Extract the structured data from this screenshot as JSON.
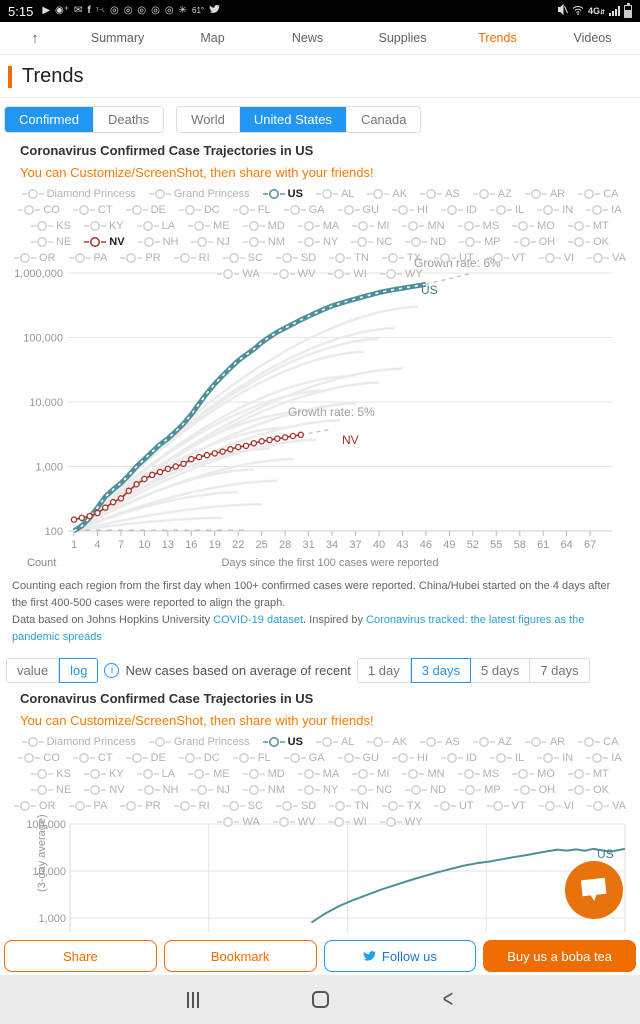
{
  "status_bar": {
    "time": "5:15",
    "left_icons": [
      "youtube-icon",
      "person-add-icon",
      "mail-icon",
      "facebook-icon",
      "carrier-text",
      "chrome-icon",
      "chrome-icon",
      "chrome-icon",
      "chrome-icon",
      "chrome-icon",
      "camera-icon"
    ],
    "temperature": "61°",
    "right": {
      "network": "4G",
      "battery_percent": "55"
    }
  },
  "nav": {
    "items": [
      {
        "label": "Summary",
        "active": false
      },
      {
        "label": "Map",
        "active": false
      },
      {
        "label": "News",
        "active": false
      },
      {
        "label": "Supplies",
        "active": false
      },
      {
        "label": "Trends",
        "active": true
      },
      {
        "label": "Videos",
        "active": false
      }
    ]
  },
  "page": {
    "heading": "Trends"
  },
  "toggles": {
    "metric": {
      "options": [
        "Confirmed",
        "Deaths"
      ],
      "selected": "Confirmed"
    },
    "region": {
      "options": [
        "World",
        "United States",
        "Canada"
      ],
      "selected": "United States"
    }
  },
  "section1": {
    "title": "Coronavirus Confirmed Case Trajectories in US",
    "hint": "You can Customize/ScreenShot, then share with your friends!"
  },
  "legend": {
    "items": [
      "Diamond Princess",
      "Grand Princess",
      "US",
      "AL",
      "AK",
      "AS",
      "AZ",
      "AR",
      "CA",
      "CO",
      "CT",
      "DE",
      "DC",
      "FL",
      "GA",
      "GU",
      "HI",
      "ID",
      "IL",
      "IN",
      "IA",
      "KS",
      "KY",
      "LA",
      "ME",
      "MD",
      "MA",
      "MI",
      "MN",
      "MS",
      "MO",
      "MT",
      "NE",
      "NV",
      "NH",
      "NJ",
      "NM",
      "NY",
      "NC",
      "ND",
      "MP",
      "OH",
      "OK",
      "OR",
      "PA",
      "PR",
      "RI",
      "SC",
      "SD",
      "TN",
      "TX",
      "UT",
      "VT",
      "VI",
      "VA",
      "WA",
      "WV",
      "WI",
      "WY"
    ],
    "chart1_highlights": {
      "US": "#4d8f9a",
      "NV": "#a93226"
    },
    "chart2_highlights": {
      "US": "#4d8f9a"
    }
  },
  "footnote": {
    "line1": "Counting each region from the first day when 100+ confirmed cases  were reported. China/Hubei started on the 4 days after the first 400-500 cases were reported to align the graph.",
    "line2_prefix": "Data based on Johns Hopkins University ",
    "link1": "COVID-19 dataset",
    "line2_mid": ". Inspired by ",
    "link2": "Coronavirus tracked: the latest figures as the pandemic spreads"
  },
  "controls": {
    "scale_options": [
      "value",
      "log"
    ],
    "scale_selected": "log",
    "info_icon": "i",
    "label": "New cases based on average of recent",
    "day_options": [
      "1 day",
      "3 days",
      "5 days",
      "7 days"
    ],
    "day_selected": "3 days"
  },
  "section2": {
    "title": "Coronavirus Confirmed Case Trajectories in US",
    "hint": "You can Customize/ScreenShot, then share with your friends!"
  },
  "footer_buttons": [
    {
      "label": "Share",
      "style": "orange-outline"
    },
    {
      "label": "Bookmark",
      "style": "orange-outline"
    },
    {
      "label": "Follow us",
      "style": "blue-outline",
      "icon": "twitter-icon"
    },
    {
      "label": "Buy us a boba tea",
      "style": "orange-fill"
    }
  ],
  "chart_data": [
    {
      "type": "line",
      "title": "Coronavirus Confirmed Case Trajectories in US",
      "xlabel": "Days since the first 100 cases were reported",
      "ylabel": "Count",
      "yscale": "log",
      "ylim": [
        100,
        1000000
      ],
      "yticks": [
        "1,000,000",
        "100,000",
        "10,000",
        "1,000",
        "100"
      ],
      "xticks": [
        1,
        4,
        7,
        10,
        13,
        16,
        19,
        22,
        25,
        28,
        31,
        34,
        37,
        40,
        43,
        46,
        49,
        52,
        55,
        58,
        61,
        64,
        67
      ],
      "annotations": [
        {
          "text": "Growth rate: 6%",
          "series": "US"
        },
        {
          "text": "US",
          "series": "US"
        },
        {
          "text": "Growth rate: 5%",
          "series": "NV"
        },
        {
          "text": "NV",
          "series": "NV"
        }
      ],
      "series": [
        {
          "name": "US",
          "color": "#4d8f9a",
          "marker": "dash",
          "data": [
            [
              1,
              100
            ],
            [
              2,
              120
            ],
            [
              3,
              160
            ],
            [
              4,
              230
            ],
            [
              5,
              340
            ],
            [
              6,
              440
            ],
            [
              7,
              550
            ],
            [
              8,
              730
            ],
            [
              9,
              1000
            ],
            [
              10,
              1300
            ],
            [
              11,
              1700
            ],
            [
              12,
              2200
            ],
            [
              13,
              2700
            ],
            [
              14,
              3500
            ],
            [
              15,
              4600
            ],
            [
              16,
              6400
            ],
            [
              17,
              9400
            ],
            [
              18,
              13700
            ],
            [
              19,
              19100
            ],
            [
              20,
              25500
            ],
            [
              21,
              33700
            ],
            [
              22,
              43800
            ],
            [
              23,
              54000
            ],
            [
              24,
              65800
            ],
            [
              25,
              83800
            ],
            [
              26,
              101700
            ],
            [
              27,
              121400
            ],
            [
              28,
              140900
            ],
            [
              29,
              161800
            ],
            [
              30,
              188200
            ],
            [
              31,
              213400
            ],
            [
              32,
              243700
            ],
            [
              33,
              275600
            ],
            [
              34,
              308800
            ],
            [
              35,
              337000
            ],
            [
              36,
              366700
            ],
            [
              37,
              396200
            ],
            [
              38,
              429100
            ],
            [
              39,
              461400
            ],
            [
              40,
              496500
            ],
            [
              41,
              526400
            ],
            [
              42,
              555300
            ],
            [
              43,
              580600
            ],
            [
              44,
              607700
            ],
            [
              45,
              636400
            ],
            [
              46,
              667800
            ]
          ]
        },
        {
          "name": "NV",
          "color": "#a93226",
          "marker": "circle",
          "data": [
            [
              1,
              150
            ],
            [
              2,
              160
            ],
            [
              3,
              170
            ],
            [
              4,
              190
            ],
            [
              5,
              230
            ],
            [
              6,
              280
            ],
            [
              7,
              320
            ],
            [
              8,
              420
            ],
            [
              9,
              530
            ],
            [
              10,
              640
            ],
            [
              11,
              740
            ],
            [
              12,
              820
            ],
            [
              13,
              920
            ],
            [
              14,
              1000
            ],
            [
              15,
              1100
            ],
            [
              16,
              1300
            ],
            [
              17,
              1400
            ],
            [
              18,
              1500
            ],
            [
              19,
              1600
            ],
            [
              20,
              1700
            ],
            [
              21,
              1850
            ],
            [
              22,
              2000
            ],
            [
              23,
              2090
            ],
            [
              24,
              2290
            ],
            [
              25,
              2460
            ],
            [
              26,
              2580
            ],
            [
              27,
              2700
            ],
            [
              28,
              2830
            ],
            [
              29,
              2970
            ],
            [
              30,
              3100
            ]
          ]
        }
      ],
      "projections": [
        {
          "series": "US",
          "from": [
            46,
            667800
          ],
          "to": [
            52,
            1000000
          ]
        },
        {
          "series": "NV",
          "from": [
            30,
            3100
          ],
          "to": [
            34,
            3800
          ]
        }
      ],
      "baseline_dash": {
        "value": 103,
        "from_day": 1,
        "to_day": 23
      },
      "background_series": [
        {
          "end_day": 45,
          "end_val": 300000
        },
        {
          "end_day": 42,
          "end_val": 140000
        },
        {
          "end_day": 40,
          "end_val": 95000
        },
        {
          "end_day": 38,
          "end_val": 60000
        },
        {
          "end_day": 43,
          "end_val": 33000
        },
        {
          "end_day": 36,
          "end_val": 25000
        },
        {
          "end_day": 40,
          "end_val": 20000
        },
        {
          "end_day": 33,
          "end_val": 15000
        },
        {
          "end_day": 37,
          "end_val": 9500
        },
        {
          "end_day": 30,
          "end_val": 7000
        },
        {
          "end_day": 35,
          "end_val": 5200
        },
        {
          "end_day": 28,
          "end_val": 4000
        },
        {
          "end_day": 32,
          "end_val": 2600
        },
        {
          "end_day": 26,
          "end_val": 1900
        },
        {
          "end_day": 29,
          "end_val": 1300
        },
        {
          "end_day": 24,
          "end_val": 900
        },
        {
          "end_day": 27,
          "end_val": 600
        },
        {
          "end_day": 22,
          "end_val": 400
        },
        {
          "end_day": 25,
          "end_val": 260
        },
        {
          "end_day": 20,
          "end_val": 160
        }
      ]
    },
    {
      "type": "line",
      "yscale": "log",
      "ylim": [
        1000,
        100000
      ],
      "yticks": [
        "100,000",
        "10,000",
        "1,000"
      ],
      "ylabel": "(3-day average)",
      "end_label": "US",
      "series": [
        {
          "name": "US",
          "color": "#4d8f9a",
          "data": [
            [
              0.435,
              800
            ],
            [
              0.46,
              1250
            ],
            [
              0.485,
              1800
            ],
            [
              0.51,
              2400
            ],
            [
              0.535,
              3100
            ],
            [
              0.56,
              4000
            ],
            [
              0.585,
              5000
            ],
            [
              0.61,
              6200
            ],
            [
              0.635,
              7600
            ],
            [
              0.66,
              9200
            ],
            [
              0.685,
              11000
            ],
            [
              0.71,
              13000
            ],
            [
              0.735,
              14800
            ],
            [
              0.755,
              15800
            ],
            [
              0.775,
              17500
            ],
            [
              0.8,
              19800
            ],
            [
              0.825,
              22000
            ],
            [
              0.845,
              24500
            ],
            [
              0.862,
              26500
            ],
            [
              0.878,
              28500
            ],
            [
              0.895,
              27200
            ],
            [
              0.912,
              28800
            ],
            [
              0.928,
              27000
            ],
            [
              0.942,
              29500
            ],
            [
              0.955,
              28000
            ],
            [
              0.968,
              26500
            ],
            [
              0.975,
              25800
            ],
            [
              0.985,
              27500
            ],
            [
              1.0,
              29500
            ]
          ]
        }
      ]
    }
  ],
  "android_nav": {
    "recents": "recents",
    "home": "home",
    "back": "back"
  }
}
